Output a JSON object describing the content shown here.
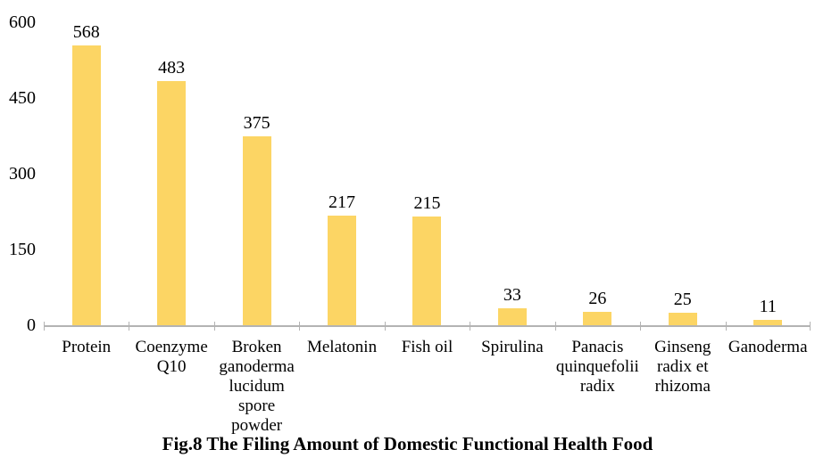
{
  "figure": {
    "caption": "Fig.8 The Filing Amount of Domestic Functional Health Food"
  },
  "chart_data": {
    "type": "bar",
    "title": "Fig.8 The Filing Amount of Domestic Functional Health Food",
    "categories": [
      "Protein",
      "Coenzyme Q10",
      "Broken ganoderma lucidum spore powder",
      "Melatonin",
      "Fish oil",
      "Spirulina",
      "Panacis quinquefolii radix",
      "Ginseng radix et rhizoma",
      "Ganoderma"
    ],
    "values": [
      568,
      483,
      375,
      217,
      215,
      33,
      26,
      25,
      11
    ],
    "data_labels": [
      568,
      483,
      375,
      217,
      215,
      33,
      26,
      25,
      11
    ],
    "xlabel": "",
    "ylabel": "",
    "ylim": [
      0,
      600
    ],
    "yticks": [
      0,
      150,
      300,
      450,
      600
    ],
    "grid": false,
    "legend": false,
    "bar_color": "#FCD564",
    "axis_color": "#B3B3B3",
    "label_color": "#000000"
  }
}
